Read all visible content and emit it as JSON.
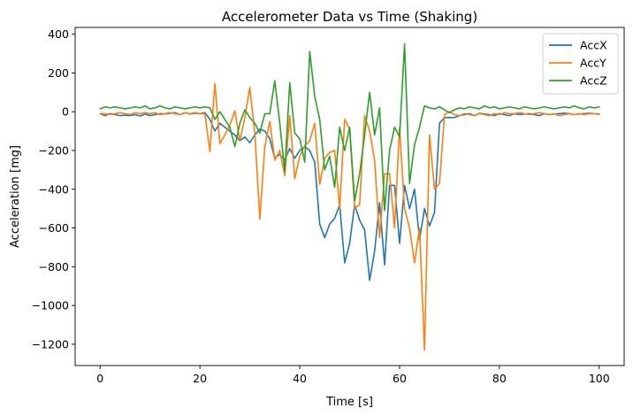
{
  "chart_data": {
    "type": "line",
    "title": "Accelerometer Data vs Time (Shaking)",
    "xlabel": "Time [s]",
    "ylabel": "Acceleration [mg]",
    "xlim": [
      -5,
      105
    ],
    "ylim": [
      -1310,
      435
    ],
    "xticks": [
      0,
      20,
      40,
      60,
      80,
      100
    ],
    "yticks": [
      400,
      200,
      0,
      -200,
      -400,
      -600,
      -800,
      -1000,
      -1200
    ],
    "xtick_labels": [
      "0",
      "20",
      "40",
      "60",
      "80",
      "100"
    ],
    "ytick_labels": [
      "400",
      "200",
      "0",
      "−200",
      "−400",
      "−600",
      "−800",
      "−1000",
      "−1200"
    ],
    "grid": false,
    "legend_position": "top-right",
    "x": [
      0,
      1,
      2,
      3,
      4,
      5,
      6,
      7,
      8,
      9,
      10,
      11,
      12,
      13,
      14,
      15,
      16,
      17,
      18,
      19,
      20,
      21,
      22,
      23,
      24,
      25,
      26,
      27,
      28,
      29,
      30,
      31,
      32,
      33,
      34,
      35,
      36,
      37,
      38,
      39,
      40,
      41,
      42,
      43,
      44,
      45,
      46,
      47,
      48,
      49,
      50,
      51,
      52,
      53,
      54,
      55,
      56,
      57,
      58,
      59,
      60,
      61,
      62,
      63,
      64,
      65,
      66,
      67,
      68,
      69,
      70,
      71,
      72,
      73,
      74,
      75,
      76,
      77,
      78,
      79,
      80,
      81,
      82,
      83,
      84,
      85,
      86,
      87,
      88,
      89,
      90,
      91,
      92,
      93,
      94,
      95,
      96,
      97,
      98,
      99,
      100
    ],
    "series": [
      {
        "name": "AccX",
        "color": "#1f77b4",
        "values": [
          -10,
          -20,
          -10,
          -15,
          -20,
          -18,
          -20,
          -15,
          -22,
          -12,
          -20,
          -15,
          -10,
          -12,
          -8,
          -5,
          -15,
          -5,
          -12,
          -8,
          -10,
          -5,
          -40,
          -100,
          -60,
          -80,
          -100,
          -120,
          -150,
          -130,
          -160,
          -120,
          -90,
          -100,
          -140,
          -240,
          -220,
          -250,
          -190,
          -240,
          -200,
          -180,
          -200,
          -260,
          -580,
          -650,
          -580,
          -550,
          -480,
          -780,
          -680,
          -480,
          -560,
          -610,
          -870,
          -720,
          -470,
          -790,
          -380,
          -380,
          -680,
          -380,
          -500,
          -400,
          -660,
          -500,
          -590,
          -520,
          -60,
          -30,
          -30,
          -30,
          -20,
          -15,
          -10,
          -20,
          -8,
          -12,
          -15,
          -20,
          -10,
          -15,
          -20,
          -10,
          -15,
          -12,
          -10,
          -15,
          -20,
          -10,
          -15,
          -12,
          -10,
          -8,
          -10,
          -15,
          -12,
          -10,
          -8,
          -10,
          -12
        ]
      },
      {
        "name": "AccY",
        "color": "#ff7f0e",
        "values": [
          -10,
          -10,
          -15,
          -10,
          -5,
          -10,
          -15,
          -5,
          -10,
          -5,
          -10,
          -5,
          -15,
          -10,
          -5,
          -10,
          -15,
          -5,
          -10,
          -5,
          -10,
          -10,
          -205,
          145,
          -165,
          -120,
          -70,
          5,
          -150,
          -30,
          125,
          -110,
          -555,
          -180,
          -50,
          -250,
          -200,
          -330,
          -20,
          -345,
          -230,
          -175,
          -150,
          -60,
          -375,
          -240,
          -210,
          -200,
          -500,
          -40,
          -90,
          -500,
          -480,
          -20,
          -100,
          -250,
          -650,
          -320,
          -320,
          -600,
          -80,
          -500,
          -600,
          -780,
          -600,
          -1230,
          -120,
          -400,
          -370,
          -15,
          0,
          -15,
          -20,
          -10,
          -15,
          -20,
          -10,
          -15,
          -20,
          -10,
          -15,
          -5,
          -10,
          -10,
          -5,
          -10,
          -15,
          -10,
          -5,
          -10,
          -15,
          -10,
          -20,
          -15,
          -10,
          -15,
          -10,
          -15,
          -10,
          -10,
          -15
        ]
      },
      {
        "name": "AccZ",
        "color": "#2ca02c",
        "values": [
          15,
          25,
          20,
          25,
          20,
          15,
          20,
          25,
          20,
          30,
          15,
          20,
          30,
          20,
          15,
          25,
          20,
          15,
          20,
          25,
          20,
          25,
          20,
          -40,
          0,
          -40,
          -80,
          -180,
          -60,
          10,
          -30,
          -60,
          -110,
          -10,
          -10,
          160,
          -60,
          -310,
          150,
          -110,
          -140,
          -260,
          310,
          80,
          -40,
          -300,
          -230,
          -390,
          -80,
          -200,
          -80,
          -460,
          -320,
          -120,
          100,
          -120,
          20,
          -510,
          -200,
          -80,
          -130,
          350,
          -370,
          -170,
          -80,
          30,
          20,
          15,
          25,
          10,
          -5,
          10,
          20,
          15,
          25,
          20,
          15,
          30,
          20,
          25,
          15,
          20,
          25,
          20,
          15,
          25,
          20,
          15,
          20,
          25,
          20,
          15,
          20,
          25,
          20,
          30,
          20,
          15,
          25,
          20,
          25
        ]
      }
    ]
  }
}
